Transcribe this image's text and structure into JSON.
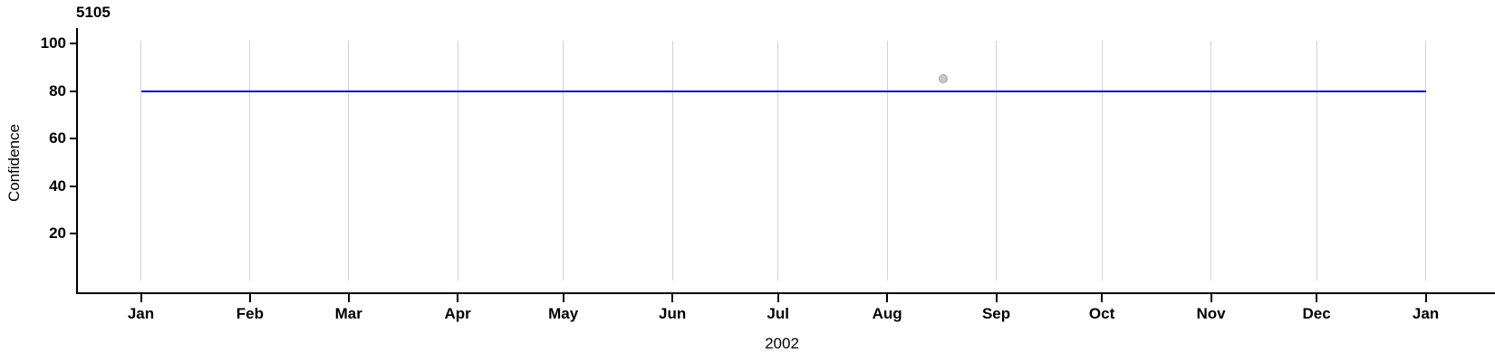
{
  "chart_data": {
    "type": "line",
    "panel_label": "5105",
    "title": "5105",
    "xlabel": "2002",
    "ylabel": "Confidence",
    "x_axis": {
      "tick_labels": [
        "Jan",
        "Feb",
        "Mar",
        "Apr",
        "May",
        "Jun",
        "Jul",
        "Aug",
        "Sep",
        "Oct",
        "Nov",
        "Dec",
        "Jan"
      ],
      "tick_day_offsets": [
        0,
        31,
        59,
        90,
        120,
        151,
        181,
        212,
        243,
        273,
        304,
        334,
        365
      ],
      "range": [
        "Jan 2002",
        "Jan 2003"
      ],
      "grid": "vertical gridlines at each month"
    },
    "y_axis": {
      "ticks": [
        20,
        40,
        60,
        80,
        100
      ],
      "range": [
        0,
        101
      ]
    },
    "series": [
      {
        "name": "confidence-line",
        "type": "horizontal-line",
        "value": 80,
        "x_start_day": 0,
        "x_end_day": 365,
        "color": "#0000cc"
      },
      {
        "name": "observation-point",
        "type": "scatter",
        "points": [
          {
            "day_of_year": 228,
            "approx_date": "mid-Aug 2002",
            "value": 85
          }
        ],
        "fill": "#c8c8c8",
        "stroke": "#a6a6a6"
      }
    ],
    "colors": {
      "gridline": "#d3d3d3",
      "axis": "#000000",
      "text": "#000000",
      "background": "#ffffff",
      "line": "#0000cc"
    },
    "legend": "none"
  }
}
